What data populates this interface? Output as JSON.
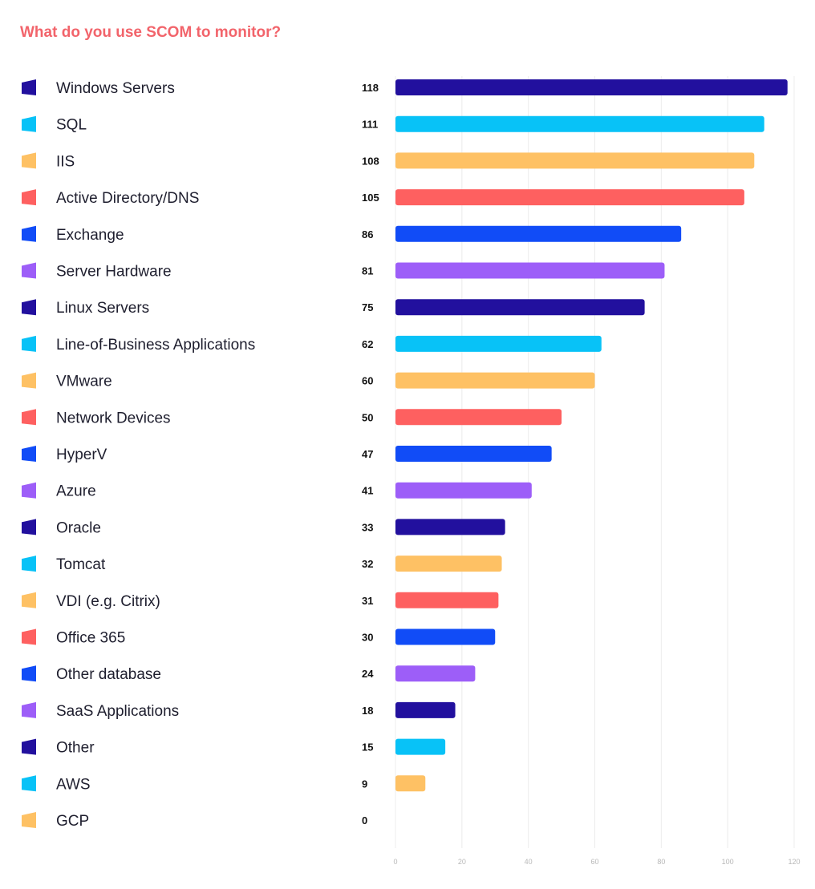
{
  "chart_data": {
    "type": "bar",
    "orientation": "horizontal",
    "title": "What do you use SCOM to monitor?",
    "categories": [
      "Windows Servers",
      "SQL",
      "IIS",
      "Active Directory/DNS",
      "Exchange",
      "Server Hardware",
      "Linux Servers",
      "Line-of-Business Applications",
      "VMware",
      "Network Devices",
      "HyperV",
      "Azure",
      "Oracle",
      "Tomcat",
      "VDI (e.g. Citrix)",
      "Office 365",
      "Other database",
      "SaaS Applications",
      "Other",
      "AWS",
      "GCP"
    ],
    "values": [
      118,
      111,
      108,
      105,
      86,
      81,
      75,
      62,
      60,
      50,
      47,
      41,
      33,
      32,
      31,
      30,
      24,
      18,
      15,
      9,
      0
    ],
    "legend_colors": [
      "#22109e",
      "#08c2f7",
      "#fec164",
      "#fe6060",
      "#114cf7",
      "#9d5ef8",
      "#22109e",
      "#08c2f7",
      "#fec164",
      "#fe6060",
      "#114cf7",
      "#9d5ef8",
      "#22109e",
      "#08c2f7",
      "#fec164",
      "#fe6060",
      "#114cf7",
      "#9d5ef8",
      "#22109e",
      "#08c2f7",
      "#fec164"
    ],
    "bar_colors": [
      "#22109e",
      "#08c2f7",
      "#fec164",
      "#fe6060",
      "#114cf7",
      "#9d5ef8",
      "#22109e",
      "#08c2f7",
      "#fec164",
      "#fe6060",
      "#114cf7",
      "#9d5ef8",
      "#22109e",
      "#fec164",
      "#fe6060",
      "#114cf7",
      "#9d5ef8",
      "#22109e",
      "#08c2f7",
      "#fec164",
      "#fec164"
    ],
    "xlim": [
      0,
      120
    ],
    "xticks": [
      0,
      20,
      40,
      60,
      80,
      100,
      120
    ],
    "grid": true,
    "legend_placement": "left"
  }
}
